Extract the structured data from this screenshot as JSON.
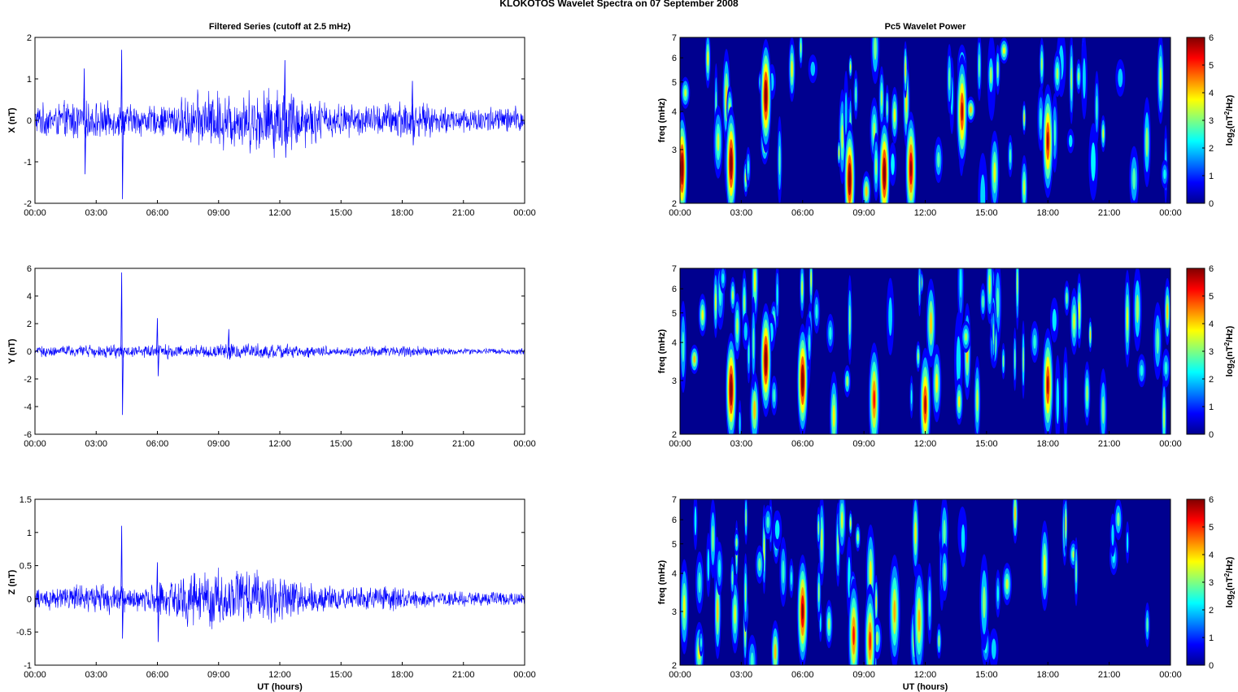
{
  "figure": {
    "suptitle": "KLOKOTOS Wavelet Spectra on 07 September 2008",
    "left_column_title": "Filtered Series (cutoff at 2.5 mHz)",
    "right_column_title": "Pc5 Wavelet Power",
    "xlabel": "UT (hours)",
    "colors": {
      "trace": "#0000ff",
      "axes": "#000000",
      "background_low": "#00008f"
    }
  },
  "chart_data": [
    {
      "type": "line",
      "component": "X",
      "title": "Filtered Series (cutoff at 2.5 mHz)",
      "xlabel": "",
      "ylabel": "X (nT)",
      "xlim": [
        "00:00",
        "00:00"
      ],
      "x_ticks": [
        "00:00",
        "03:00",
        "06:00",
        "09:00",
        "12:00",
        "15:00",
        "18:00",
        "21:00",
        "00:00"
      ],
      "ylim": [
        -2,
        2
      ],
      "y_ticks": [
        "-2",
        "-1",
        "0",
        "1",
        "2"
      ],
      "grid": false,
      "series": [
        {
          "amplitude_envelope_nT": {
            "hours": [
              0,
              1,
              2,
              3,
              4,
              5,
              6,
              7,
              8,
              9,
              10,
              11,
              12,
              13,
              14,
              15,
              16,
              17,
              18,
              19,
              20,
              21,
              22,
              23,
              24
            ],
            "values": [
              0.35,
              0.35,
              0.45,
              0.4,
              0.35,
              0.35,
              0.3,
              0.45,
              0.6,
              0.65,
              0.6,
              0.7,
              0.75,
              0.6,
              0.45,
              0.35,
              0.35,
              0.35,
              0.5,
              0.35,
              0.3,
              0.3,
              0.3,
              0.3,
              0.3
            ]
          },
          "spikes": [
            {
              "time": "02:25",
              "max": 1.25,
              "min": -1.3
            },
            {
              "time": "04:15",
              "max": 1.7,
              "min": -1.9
            },
            {
              "time": "12:15",
              "max": 1.45,
              "min": -0.9
            },
            {
              "time": "18:30",
              "max": 0.95,
              "min": -0.6
            }
          ]
        }
      ]
    },
    {
      "type": "heatmap",
      "component": "X",
      "title": "Pc5 Wavelet Power",
      "xlabel": "",
      "ylabel": "freq (mHz)",
      "x_ticks": [
        "00:00",
        "03:00",
        "06:00",
        "09:00",
        "12:00",
        "15:00",
        "18:00",
        "21:00",
        "00:00"
      ],
      "y_ticks": [
        "2",
        "3",
        "4",
        "5",
        "6",
        "7"
      ],
      "ylim_mHz": [
        2,
        7
      ],
      "yscale": "log",
      "colorbar": {
        "label": "log2(nT²/Hz)",
        "ticks": [
          "0",
          "1",
          "2",
          "3",
          "4",
          "5",
          "6"
        ],
        "colormap": "jet",
        "clim": [
          0,
          6
        ]
      },
      "hot_spots": [
        {
          "hour": 0.1,
          "freq_mHz": 2.6,
          "log2_power": 6
        },
        {
          "hour": 2.5,
          "freq_mHz": 2.7,
          "log2_power": 6
        },
        {
          "hour": 4.2,
          "freq_mHz": 4.5,
          "log2_power": 6
        },
        {
          "hour": 8.3,
          "freq_mHz": 2.4,
          "log2_power": 6
        },
        {
          "hour": 10.0,
          "freq_mHz": 2.5,
          "log2_power": 6
        },
        {
          "hour": 11.3,
          "freq_mHz": 2.6,
          "log2_power": 5.5
        },
        {
          "hour": 13.8,
          "freq_mHz": 4.0,
          "log2_power": 5
        },
        {
          "hour": 18.0,
          "freq_mHz": 3.2,
          "log2_power": 5
        }
      ]
    },
    {
      "type": "line",
      "component": "Y",
      "title": "",
      "xlabel": "",
      "ylabel": "Y (nT)",
      "x_ticks": [
        "00:00",
        "03:00",
        "06:00",
        "09:00",
        "12:00",
        "15:00",
        "18:00",
        "21:00",
        "00:00"
      ],
      "ylim": [
        -6,
        6
      ],
      "y_ticks": [
        "-6",
        "-4",
        "-2",
        "0",
        "2",
        "4",
        "6"
      ],
      "grid": false,
      "series": [
        {
          "amplitude_envelope_nT": {
            "hours": [
              0,
              1,
              2,
              3,
              4,
              5,
              6,
              7,
              8,
              9,
              10,
              11,
              12,
              13,
              14,
              15,
              16,
              17,
              18,
              19,
              20,
              21,
              22,
              23,
              24
            ],
            "values": [
              0.35,
              0.35,
              0.4,
              0.4,
              0.45,
              0.4,
              0.45,
              0.45,
              0.4,
              0.45,
              0.5,
              0.5,
              0.5,
              0.4,
              0.35,
              0.3,
              0.3,
              0.35,
              0.4,
              0.3,
              0.25,
              0.2,
              0.2,
              0.2,
              0.2
            ]
          },
          "spikes": [
            {
              "time": "04:15",
              "max": 5.7,
              "min": -4.6
            },
            {
              "time": "06:00",
              "max": 2.4,
              "min": -1.8
            },
            {
              "time": "09:30",
              "max": 1.6,
              "min": -0.6
            }
          ]
        }
      ]
    },
    {
      "type": "heatmap",
      "component": "Y",
      "title": "",
      "xlabel": "",
      "ylabel": "freq (mHz)",
      "x_ticks": [
        "00:00",
        "03:00",
        "06:00",
        "09:00",
        "12:00",
        "15:00",
        "18:00",
        "21:00",
        "00:00"
      ],
      "y_ticks": [
        "2",
        "3",
        "4",
        "5",
        "6",
        "7"
      ],
      "ylim_mHz": [
        2,
        7
      ],
      "yscale": "log",
      "colorbar": {
        "label": "log2(nT²/Hz)",
        "ticks": [
          "0",
          "1",
          "2",
          "3",
          "4",
          "5",
          "6"
        ],
        "colormap": "jet",
        "clim": [
          0,
          6
        ]
      },
      "hot_spots": [
        {
          "hour": 2.5,
          "freq_mHz": 2.8,
          "log2_power": 6
        },
        {
          "hour": 4.2,
          "freq_mHz": 3.5,
          "log2_power": 6
        },
        {
          "hour": 6.0,
          "freq_mHz": 3.0,
          "log2_power": 6
        },
        {
          "hour": 9.5,
          "freq_mHz": 2.6,
          "log2_power": 4.5
        },
        {
          "hour": 12.0,
          "freq_mHz": 2.5,
          "log2_power": 5
        },
        {
          "hour": 18.0,
          "freq_mHz": 2.9,
          "log2_power": 5
        }
      ]
    },
    {
      "type": "line",
      "component": "Z",
      "title": "",
      "xlabel": "UT (hours)",
      "ylabel": "Z (nT)",
      "x_ticks": [
        "00:00",
        "03:00",
        "06:00",
        "09:00",
        "12:00",
        "15:00",
        "18:00",
        "21:00",
        "00:00"
      ],
      "ylim": [
        -1,
        1.5
      ],
      "y_ticks": [
        "-1",
        "-0.5",
        "0",
        "0.5",
        "1",
        "1.5"
      ],
      "grid": false,
      "series": [
        {
          "amplitude_envelope_nT": {
            "hours": [
              0,
              1,
              2,
              3,
              4,
              5,
              6,
              7,
              8,
              9,
              10,
              11,
              12,
              13,
              14,
              15,
              16,
              17,
              18,
              19,
              20,
              21,
              22,
              23,
              24
            ],
            "values": [
              0.15,
              0.15,
              0.18,
              0.2,
              0.2,
              0.18,
              0.2,
              0.3,
              0.4,
              0.45,
              0.4,
              0.35,
              0.3,
              0.22,
              0.18,
              0.15,
              0.15,
              0.15,
              0.15,
              0.12,
              0.1,
              0.1,
              0.1,
              0.1,
              0.1
            ]
          },
          "spikes": [
            {
              "time": "04:15",
              "max": 1.1,
              "min": -0.6
            },
            {
              "time": "06:00",
              "max": 0.55,
              "min": -0.65
            }
          ]
        }
      ]
    },
    {
      "type": "heatmap",
      "component": "Z",
      "title": "",
      "xlabel": "UT (hours)",
      "ylabel": "freq (mHz)",
      "x_ticks": [
        "00:00",
        "03:00",
        "06:00",
        "09:00",
        "12:00",
        "15:00",
        "18:00",
        "21:00",
        "00:00"
      ],
      "y_ticks": [
        "2",
        "3",
        "4",
        "5",
        "6",
        "7"
      ],
      "ylim_mHz": [
        2,
        7
      ],
      "yscale": "log",
      "colorbar": {
        "label": "log2(nT²/Hz)",
        "ticks": [
          "0",
          "1",
          "2",
          "3",
          "4",
          "5",
          "6"
        ],
        "colormap": "jet",
        "clim": [
          0,
          6
        ]
      },
      "hot_spots": [
        {
          "hour": 6.0,
          "freq_mHz": 3.0,
          "log2_power": 5.5
        },
        {
          "hour": 8.5,
          "freq_mHz": 2.5,
          "log2_power": 4.5
        },
        {
          "hour": 9.3,
          "freq_mHz": 2.4,
          "log2_power": 4.5
        },
        {
          "hour": 10.5,
          "freq_mHz": 3.0,
          "log2_power": 3.5
        },
        {
          "hour": 11.7,
          "freq_mHz": 2.8,
          "log2_power": 3.5
        }
      ]
    }
  ]
}
